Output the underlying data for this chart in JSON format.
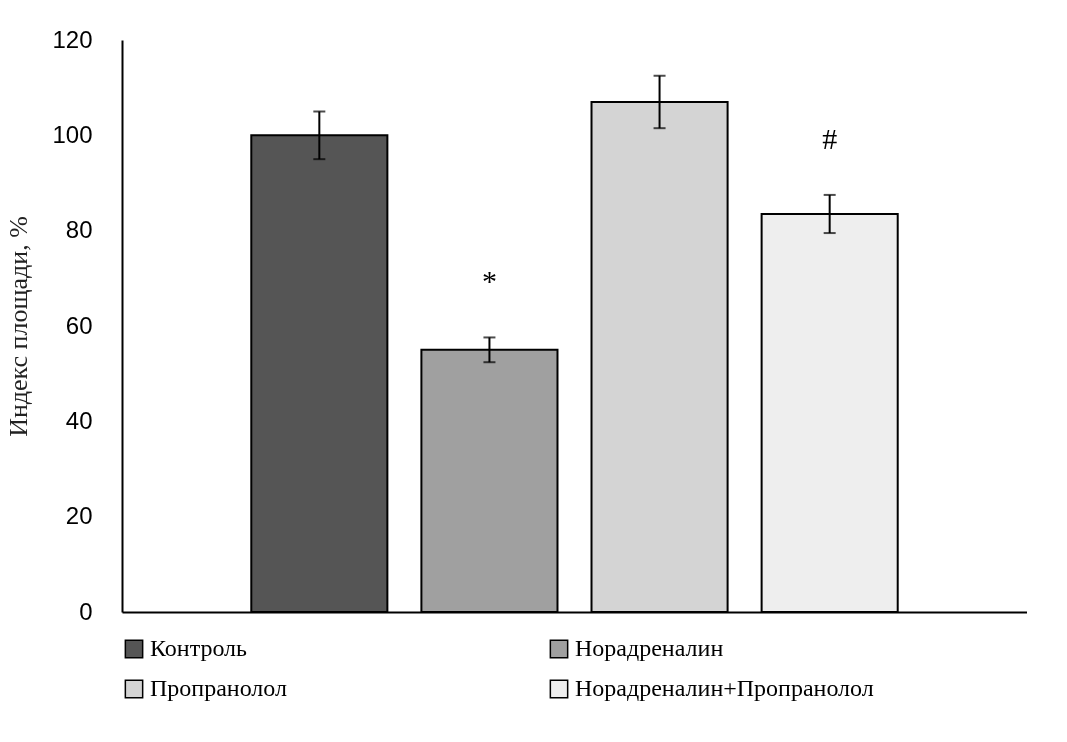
{
  "chart_data": {
    "type": "bar",
    "ylabel": "Индекс площади, %",
    "categories": [
      null
    ],
    "series": [
      {
        "name": "Контроль",
        "color": "#555555",
        "values": [
          100
        ],
        "errors": [
          5
        ]
      },
      {
        "name": "Норадреналин",
        "color": "#a0a0a0",
        "values": [
          55
        ],
        "errors": [
          2.6
        ],
        "value_labels": [
          "*"
        ]
      },
      {
        "name": "Пропранолол",
        "color": "#d4d4d4",
        "values": [
          107
        ],
        "errors": [
          5.5
        ]
      },
      {
        "name": "Норадреналин+Пропранолол",
        "color": "#eeeeee",
        "values": [
          83.5
        ],
        "errors": [
          4
        ],
        "value_labels": [
          "#"
        ]
      }
    ],
    "ylim": [
      0,
      120
    ],
    "yticks": [
      0,
      20,
      40,
      60,
      80,
      100,
      120
    ],
    "grid": false,
    "legend": "bottom",
    "tick_labels": "y"
  }
}
